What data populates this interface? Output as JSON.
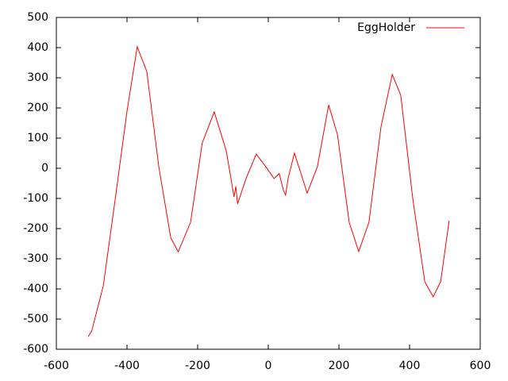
{
  "chart_data": {
    "type": "line",
    "x": [
      -510,
      -500,
      -467,
      -434,
      -400,
      -371,
      -344,
      -310,
      -276,
      -255,
      -220,
      -187,
      -153,
      -119,
      -97,
      -92,
      -87,
      -63,
      -34,
      -7,
      16,
      31,
      43,
      49,
      56,
      74,
      90,
      110,
      139,
      171,
      196,
      229,
      256,
      285,
      319,
      351,
      375,
      409,
      443,
      467,
      488,
      512
    ],
    "series": [
      {
        "name": "EggHolder",
        "color": "#ff0000",
        "values": [
          -558,
          -540,
          -389,
          -108,
          189,
          403,
          321,
          5,
          -231,
          -277,
          -179,
          84,
          187,
          58,
          -95,
          -60,
          -118,
          -34,
          47,
          5,
          -34,
          -18,
          -74,
          -89,
          -34,
          50,
          -8,
          -82,
          5,
          210,
          111,
          -179,
          -276,
          -179,
          137,
          311,
          242,
          -100,
          -376,
          -426,
          -376,
          -174
        ]
      }
    ],
    "xlim": [
      -600,
      600
    ],
    "xticks": [
      -600,
      -400,
      -200,
      0,
      200,
      400,
      600
    ],
    "ylim": [
      -600,
      500
    ],
    "yticks": [
      -600,
      -500,
      -400,
      -300,
      -200,
      -100,
      0,
      100,
      200,
      300,
      400,
      500
    ],
    "legend": "top-right",
    "grid": false
  }
}
